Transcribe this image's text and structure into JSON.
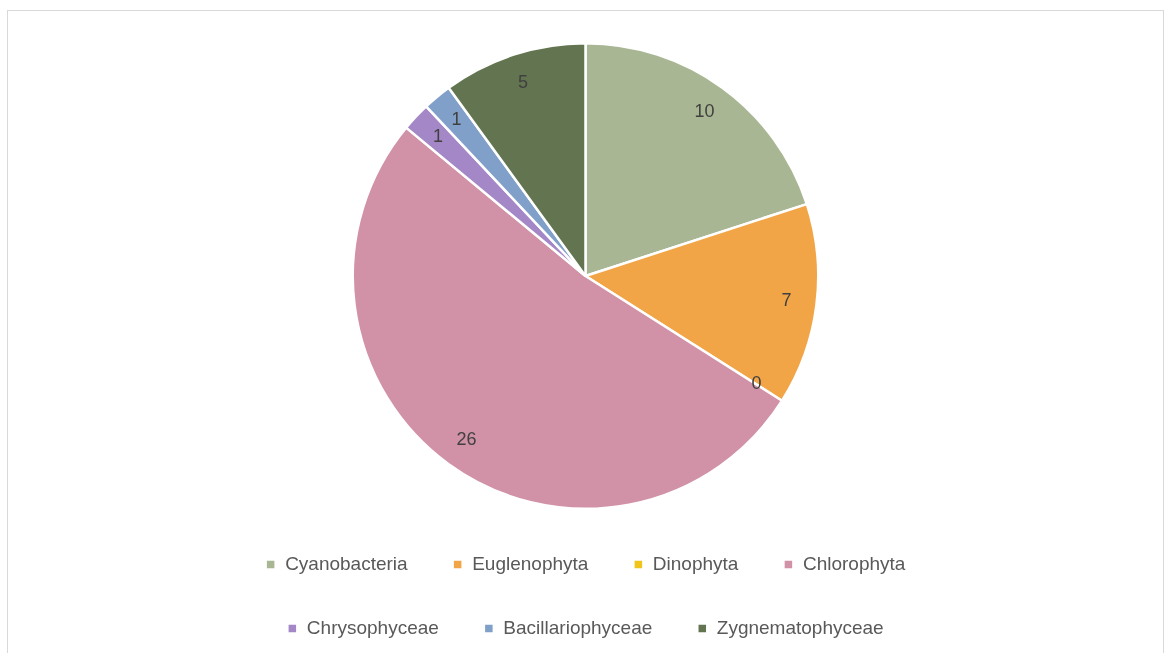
{
  "chart_data": {
    "type": "pie",
    "categories": [
      "Cyanobacteria",
      "Euglenophyta",
      "Dinophyta",
      "Chlorophyta",
      "Chrysophyceae",
      "Bacillariophyceae",
      "Zygnematophyceae"
    ],
    "values": [
      10,
      7,
      0,
      26,
      1,
      1,
      5
    ],
    "colors": [
      "#a9b693",
      "#f2a547",
      "#f0c419",
      "#d191a6",
      "#a487c6",
      "#809fc9",
      "#637550"
    ],
    "value_labels": [
      "10",
      "7",
      "0",
      "26",
      "1",
      "1",
      "5"
    ],
    "legend": "bottom"
  }
}
